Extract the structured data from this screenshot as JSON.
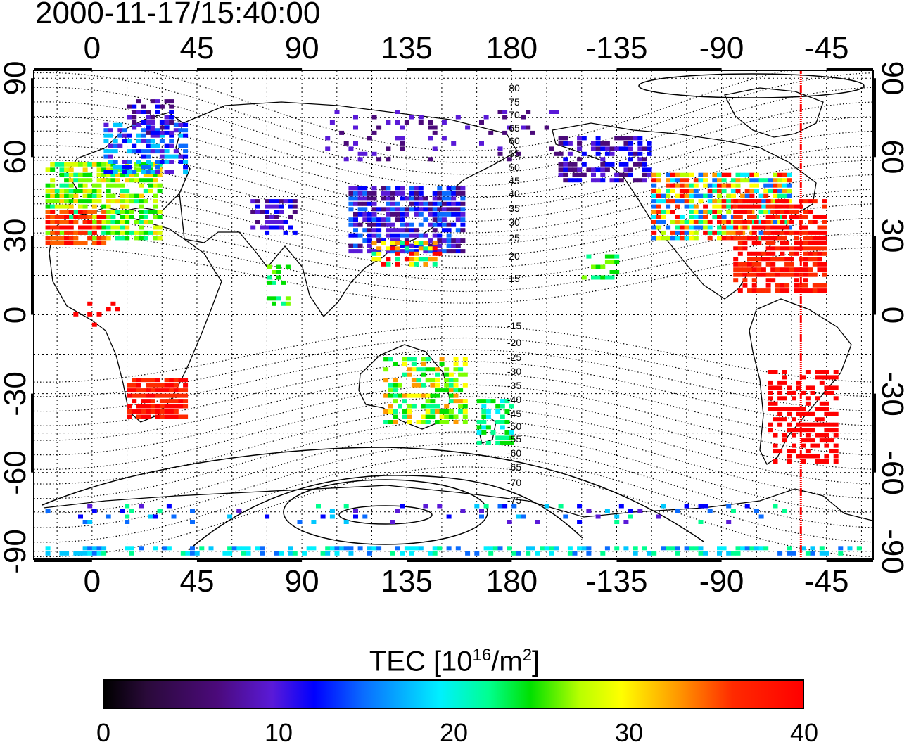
{
  "timestamp": "2000-11-17/15:40:00",
  "map": {
    "type": "global TEC map",
    "projection": "cylindrical",
    "lon_ticks": [
      "0",
      "45",
      "90",
      "135",
      "180",
      "-135",
      "-90",
      "-45"
    ],
    "lon_tick_values": [
      0,
      45,
      90,
      135,
      180,
      225,
      270,
      315
    ],
    "lat_ticks": [
      "90",
      "60",
      "30",
      "0",
      "-30",
      "-60",
      "-90"
    ],
    "lat_tick_values": [
      90,
      60,
      30,
      0,
      -30,
      -60,
      -90
    ],
    "lon_range_deg": [
      -25,
      335
    ],
    "lat_range_deg": [
      -93,
      93
    ],
    "grid": "dotted, 15 degree spacing",
    "terminator_lon": -56,
    "terminator_color": "#ff0000",
    "contour_labels_north": [
      "80",
      "75",
      "70",
      "65",
      "60",
      "55",
      "50",
      "45",
      "40",
      "35",
      "30",
      "25",
      "20",
      "15"
    ],
    "contour_labels_south": [
      "-15",
      "-20",
      "-25",
      "-30",
      "-35",
      "-40",
      "-45",
      "-50",
      "-55",
      "-60",
      "-65",
      "-70",
      "-75"
    ]
  },
  "colorbar": {
    "title_prefix": "TEC  [10",
    "title_exp1": "16",
    "title_mid": "/m",
    "title_exp2": "2",
    "title_suffix": "]",
    "ticks": [
      "0",
      "10",
      "20",
      "30",
      "40"
    ],
    "tick_values": [
      0,
      10,
      20,
      30,
      40
    ],
    "range": [
      0,
      40
    ]
  }
}
